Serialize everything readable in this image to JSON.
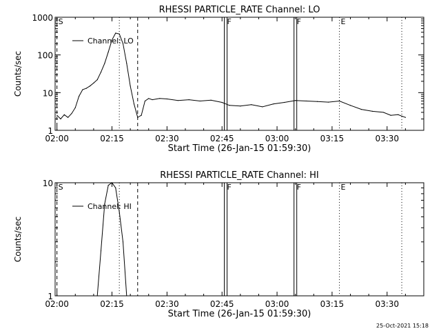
{
  "footer": {
    "date_stamp": "25-Oct-2021 15:18"
  },
  "chart_data": [
    {
      "type": "line",
      "title": "RHESSI PARTICLE_RATE Channel: LO",
      "xlabel": "Start Time (26-Jan-15 01:59:30)",
      "ylabel": "Counts/sec",
      "y_scale": "log",
      "ylim": [
        1,
        1000
      ],
      "xlim": [
        "01:59:30",
        "03:40:00"
      ],
      "x_ticks": [
        "02:00",
        "02:15",
        "02:30",
        "02:45",
        "03:00",
        "03:15",
        "03:30"
      ],
      "y_ticks": [
        "1",
        "10",
        "100",
        "1000"
      ],
      "legend": {
        "position": "top-left",
        "entries": [
          "Channel: LO"
        ]
      },
      "grid": false,
      "markers": [
        {
          "time": "02:00",
          "label": "S",
          "style": "dashed"
        },
        {
          "time": "02:17",
          "label": "",
          "style": "dotted"
        },
        {
          "time": "02:22",
          "label": "",
          "style": "dashed"
        },
        {
          "time": "02:46",
          "label": "F",
          "style": "solid"
        },
        {
          "time": "03:05",
          "label": "F",
          "style": "solid"
        },
        {
          "time": "03:17",
          "label": "E",
          "style": "dotted"
        },
        {
          "time": "03:34",
          "label": "",
          "style": "dotted"
        }
      ],
      "series": [
        {
          "name": "Channel: LO",
          "x": [
            "02:00",
            "02:01",
            "02:02",
            "02:03",
            "02:04",
            "02:05",
            "02:06",
            "02:07",
            "02:08",
            "02:09",
            "02:10",
            "02:11",
            "02:12",
            "02:13",
            "02:14",
            "02:15",
            "02:16",
            "02:17",
            "02:18",
            "02:19",
            "02:20",
            "02:21",
            "02:22",
            "02:23",
            "02:24",
            "02:25",
            "02:26",
            "02:28",
            "02:30",
            "02:33",
            "02:36",
            "02:39",
            "02:42",
            "02:45",
            "02:47",
            "02:50",
            "02:53",
            "02:56",
            "02:59",
            "03:02",
            "03:05",
            "03:08",
            "03:11",
            "03:14",
            "03:17",
            "03:20",
            "03:23",
            "03:26",
            "03:29",
            "03:31",
            "03:33",
            "03:35"
          ],
          "values": [
            2.5,
            2.0,
            2.6,
            2.2,
            2.8,
            4.0,
            8.0,
            12,
            13,
            15,
            18,
            22,
            35,
            60,
            120,
            250,
            380,
            360,
            200,
            60,
            15,
            5,
            2.2,
            2.5,
            6,
            7,
            6.5,
            7,
            6.8,
            6.2,
            6.5,
            6.0,
            6.3,
            5.5,
            4.6,
            4.4,
            4.8,
            4.2,
            5.0,
            5.5,
            6.2,
            6.0,
            5.8,
            5.6,
            6.0,
            4.6,
            3.6,
            3.2,
            3.0,
            2.5,
            2.6,
            2.2
          ]
        }
      ]
    },
    {
      "type": "line",
      "title": "RHESSI PARTICLE_RATE Channel: HI",
      "xlabel": "Start Time (26-Jan-15 01:59:30)",
      "ylabel": "Counts/sec",
      "y_scale": "log",
      "ylim": [
        1,
        10
      ],
      "xlim": [
        "01:59:30",
        "03:40:00"
      ],
      "x_ticks": [
        "02:00",
        "02:15",
        "02:30",
        "02:45",
        "03:00",
        "03:15",
        "03:30"
      ],
      "y_ticks": [
        "1",
        "10"
      ],
      "legend": {
        "position": "top-left",
        "entries": [
          "Channel: HI"
        ]
      },
      "grid": false,
      "markers": [
        {
          "time": "02:00",
          "label": "S",
          "style": "dashed"
        },
        {
          "time": "02:17",
          "label": "",
          "style": "dotted"
        },
        {
          "time": "02:22",
          "label": "",
          "style": "dashed"
        },
        {
          "time": "02:46",
          "label": "F",
          "style": "solid"
        },
        {
          "time": "03:05",
          "label": "F",
          "style": "solid"
        },
        {
          "time": "03:17",
          "label": "E",
          "style": "dotted"
        },
        {
          "time": "03:34",
          "label": "",
          "style": "dotted"
        }
      ],
      "series": [
        {
          "name": "Channel: HI",
          "x": [
            "02:11",
            "02:12",
            "02:13",
            "02:14",
            "02:15",
            "02:16",
            "02:17",
            "02:18",
            "02:19"
          ],
          "values": [
            1.0,
            2.5,
            6.5,
            9.5,
            10,
            9.0,
            5.5,
            3.0,
            1.0
          ]
        }
      ]
    }
  ]
}
